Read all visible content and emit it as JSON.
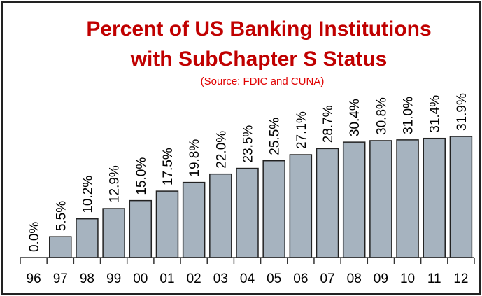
{
  "chart_data": {
    "type": "bar",
    "title": "Percent of US Banking Institutions with SubChapter S Status",
    "subtitle": "(Source: FDIC and CUNA)",
    "categories": [
      "96",
      "97",
      "98",
      "99",
      "00",
      "01",
      "02",
      "03",
      "04",
      "05",
      "06",
      "07",
      "08",
      "09",
      "10",
      "11",
      "12"
    ],
    "values": [
      0,
      5.5,
      10.2,
      12.9,
      15.0,
      17.5,
      19.8,
      22.0,
      23.5,
      25.5,
      27.1,
      28.7,
      30.4,
      30.8,
      31.0,
      31.4,
      31.9
    ],
    "value_labels": [
      "0.0%",
      "5.5%",
      "10.2%",
      "12.9%",
      "15.0%",
      "17.5%",
      "19.8%",
      "22.0%",
      "23.5%",
      "25.5%",
      "27.1%",
      "28.7%",
      "30.4%",
      "30.8%",
      "31.0%",
      "31.4%",
      "31.9%"
    ],
    "color": "#a6b3bf"
  }
}
